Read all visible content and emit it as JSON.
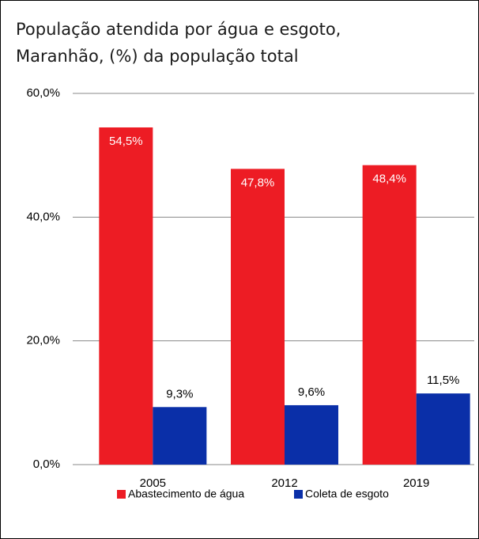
{
  "chart_data": {
    "type": "bar",
    "title": [
      "População atendida por água e esgoto,",
      "Maranhão, (%) da população total"
    ],
    "categories": [
      "2005",
      "2012",
      "2019"
    ],
    "series": [
      {
        "name": "Abastecimento de água",
        "color": "#ed1c24",
        "values": [
          54.5,
          47.8,
          48.4
        ],
        "value_labels": [
          "54,5%",
          "47,8%",
          "48,4%"
        ]
      },
      {
        "name": "Coleta de esgoto",
        "color": "#0a2fa8",
        "values": [
          9.3,
          9.6,
          11.5
        ],
        "value_labels": [
          "9,3%",
          "9,6%",
          "11,5%"
        ]
      }
    ],
    "ylim": [
      0,
      60
    ],
    "yticks": [
      {
        "value": 0,
        "label": "0,0%"
      },
      {
        "value": 20,
        "label": "20,0%"
      },
      {
        "value": 40,
        "label": "40,0%"
      },
      {
        "value": 60,
        "label": "60,0%"
      }
    ],
    "grid": true,
    "legend": "bottom"
  }
}
